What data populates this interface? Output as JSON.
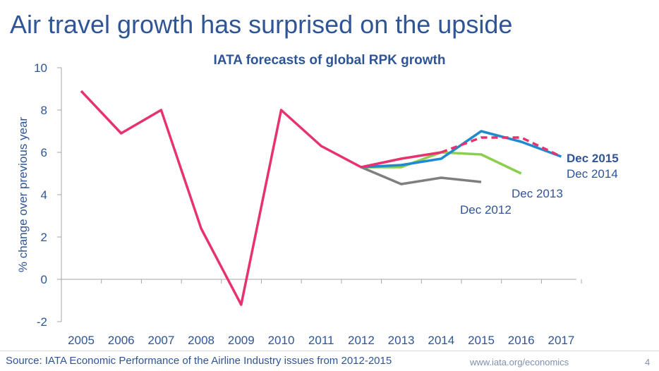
{
  "slide": {
    "title": "Air travel growth has surprised on the upside",
    "source": "Source: IATA Economic Performance of the Airline Industry issues from 2012-2015",
    "url": "www.iata.org/economics",
    "page": "4"
  },
  "chart_data": {
    "type": "line",
    "title": "IATA forecasts of global RPK growth",
    "xlabel": "",
    "ylabel": "% change over previous year",
    "x": [
      "2005",
      "2006",
      "2007",
      "2008",
      "2009",
      "2010",
      "2011",
      "2012",
      "2013",
      "2014",
      "2015",
      "2016",
      "2017"
    ],
    "y_ticks": [
      "10",
      "8",
      "6",
      "4",
      "2",
      "0",
      "-2"
    ],
    "ylim": [
      -2,
      10
    ],
    "grid": false,
    "series": [
      {
        "name": "Dec 2015",
        "color": "#e6336f",
        "dashed_from": "2014",
        "bold_label": true,
        "points": [
          {
            "x": "2005",
            "y": 8.9
          },
          {
            "x": "2006",
            "y": 6.9
          },
          {
            "x": "2007",
            "y": 8.0
          },
          {
            "x": "2008",
            "y": 2.4
          },
          {
            "x": "2009",
            "y": -1.2
          },
          {
            "x": "2010",
            "y": 8.0
          },
          {
            "x": "2011",
            "y": 6.3
          },
          {
            "x": "2012",
            "y": 5.3
          },
          {
            "x": "2013",
            "y": 5.7
          },
          {
            "x": "2014",
            "y": 6.0
          },
          {
            "x": "2015",
            "y": 6.7
          },
          {
            "x": "2016",
            "y": 6.7
          },
          {
            "x": "2017",
            "y": 5.8
          }
        ]
      },
      {
        "name": "Dec 2014",
        "color": "#1f8ad0",
        "points": [
          {
            "x": "2012",
            "y": 5.3
          },
          {
            "x": "2013",
            "y": 5.4
          },
          {
            "x": "2014",
            "y": 5.7
          },
          {
            "x": "2015",
            "y": 7.0
          },
          {
            "x": "2016",
            "y": 6.5
          },
          {
            "x": "2017",
            "y": 5.8
          }
        ]
      },
      {
        "name": "Dec 2013",
        "color": "#8ccf4d",
        "points": [
          {
            "x": "2012",
            "y": 5.3
          },
          {
            "x": "2013",
            "y": 5.3
          },
          {
            "x": "2014",
            "y": 6.0
          },
          {
            "x": "2015",
            "y": 5.9
          },
          {
            "x": "2016",
            "y": 5.0
          }
        ]
      },
      {
        "name": "Dec 2012",
        "color": "#7f7f7f",
        "points": [
          {
            "x": "2012",
            "y": 5.3
          },
          {
            "x": "2013",
            "y": 4.5
          },
          {
            "x": "2014",
            "y": 4.8
          },
          {
            "x": "2015",
            "y": 4.6
          }
        ]
      }
    ]
  }
}
